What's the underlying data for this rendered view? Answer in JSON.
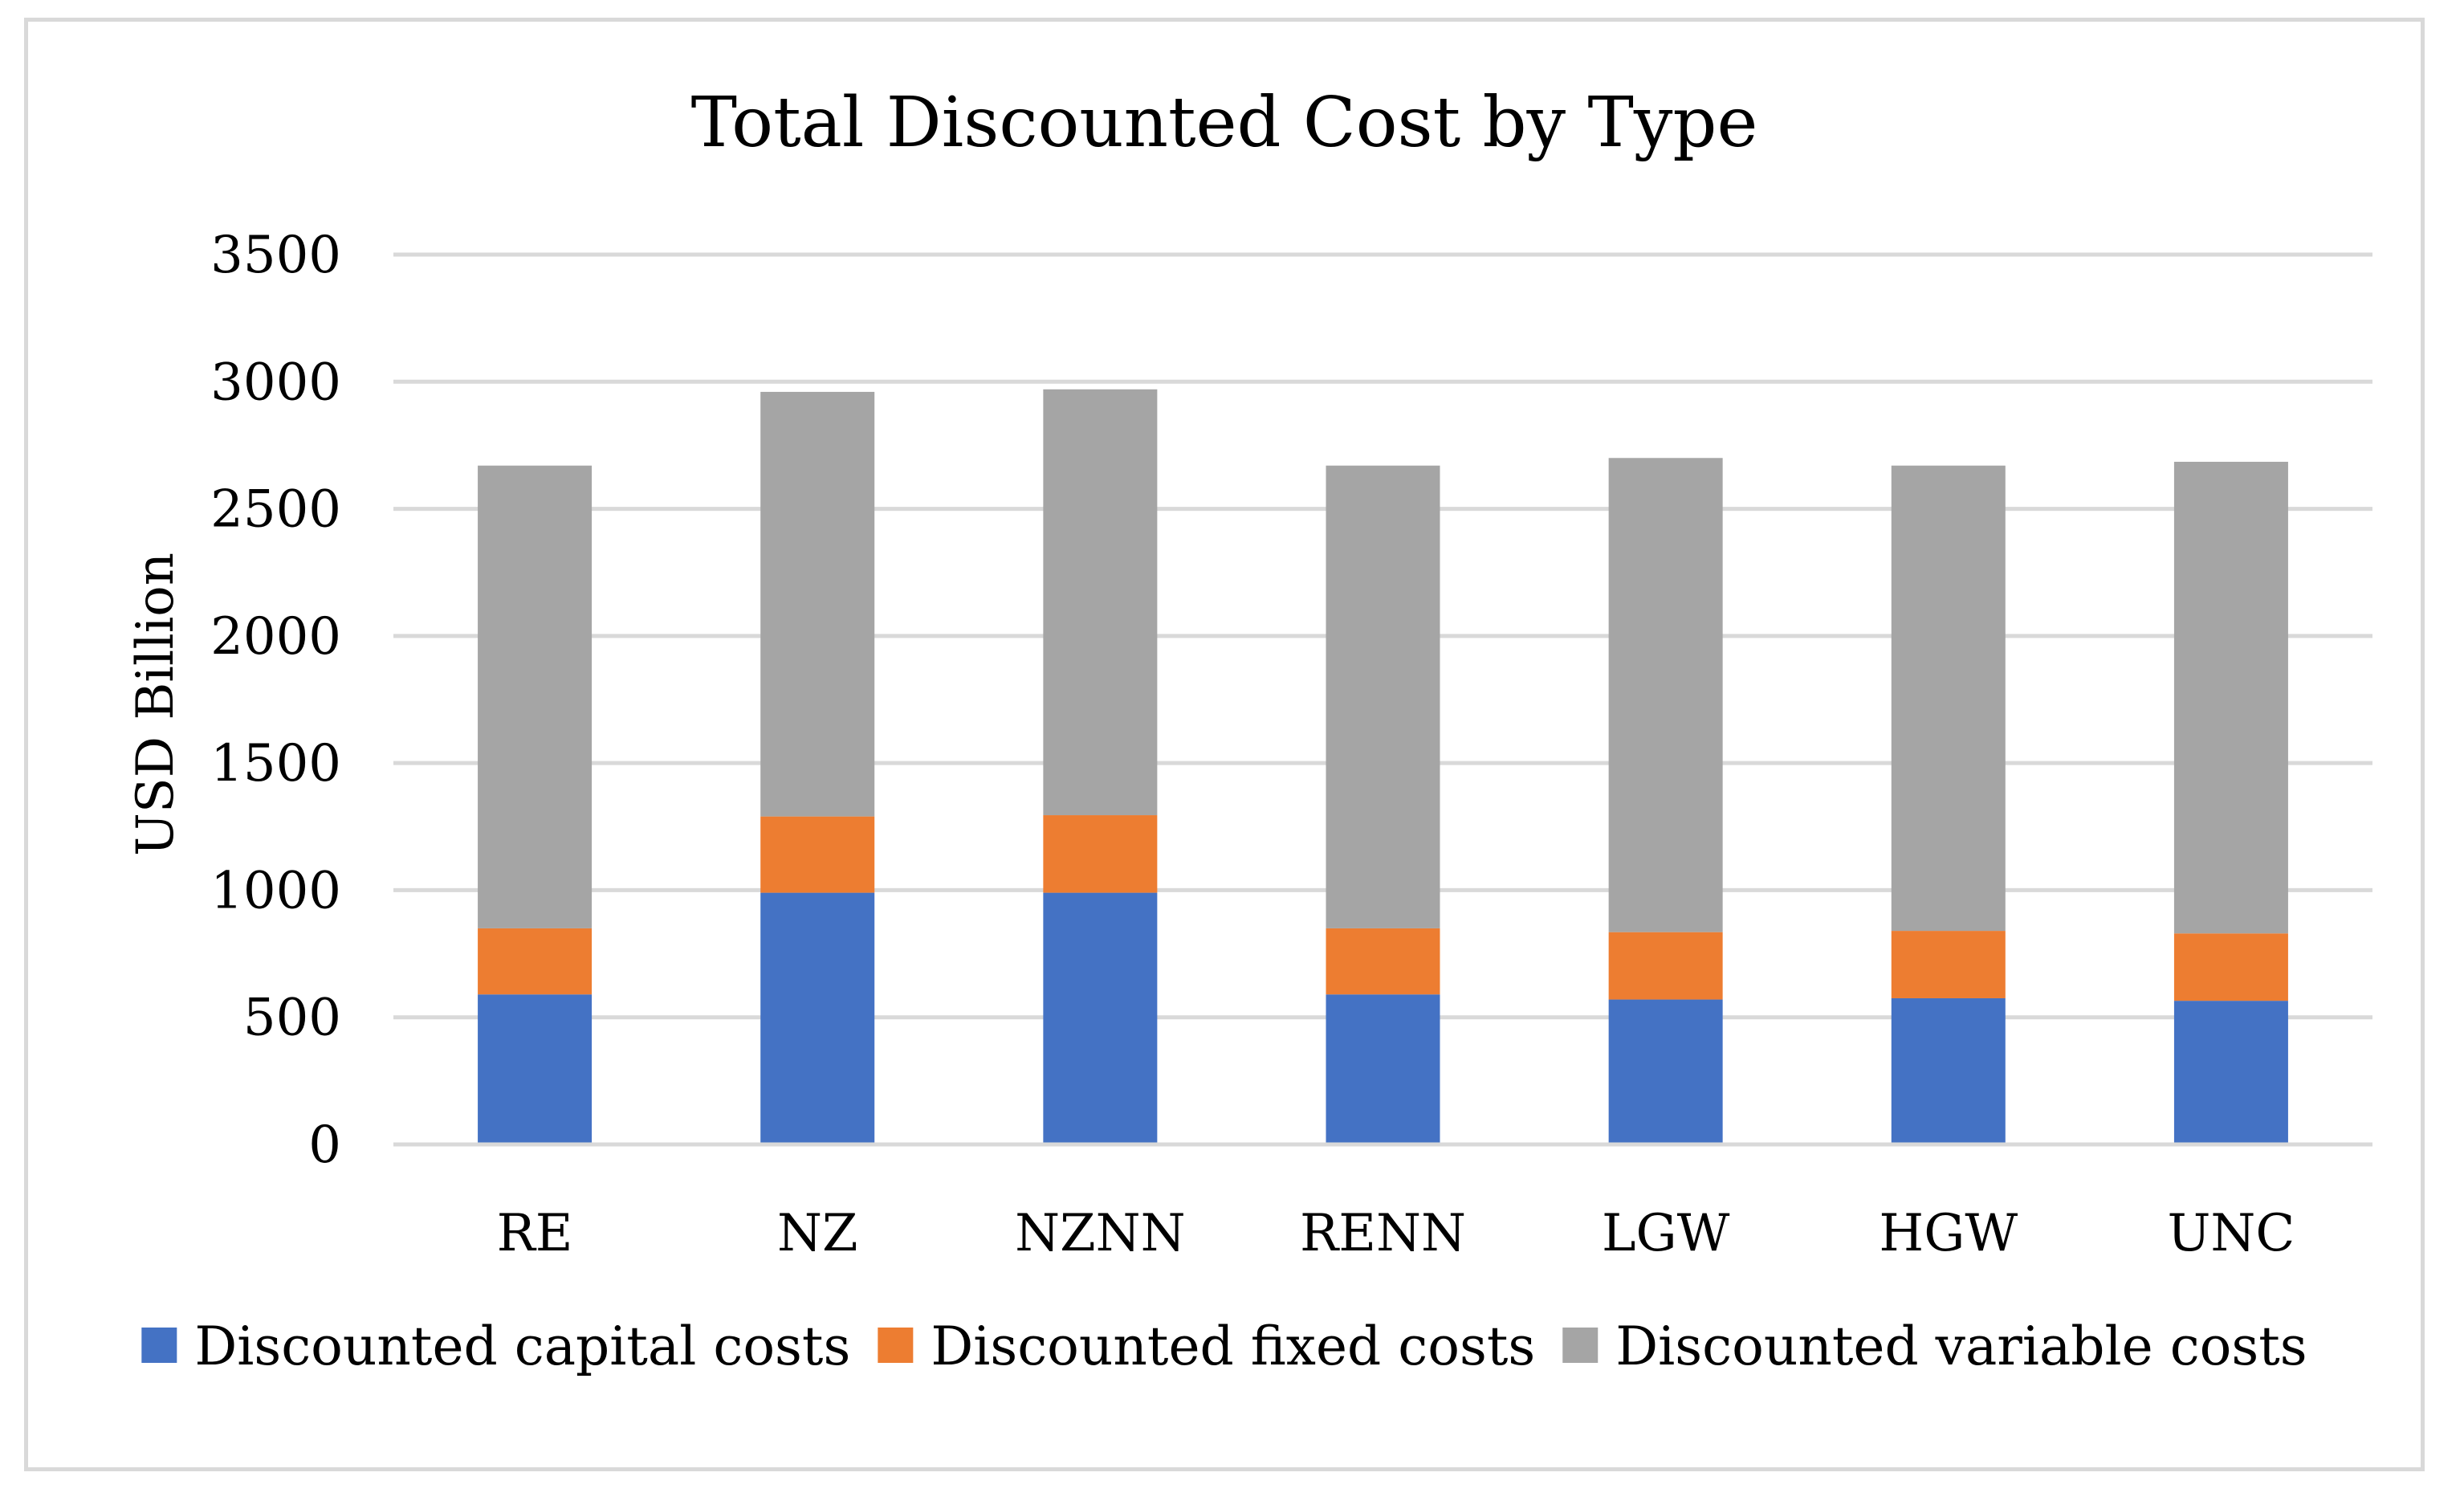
{
  "chart_data": {
    "type": "bar",
    "stacked": true,
    "title": "Total Discounted Cost by Type",
    "xlabel": "",
    "ylabel": "USD Billion",
    "ylim": [
      0,
      3500
    ],
    "yticks": [
      0,
      500,
      1000,
      1500,
      2000,
      2500,
      3000,
      3500
    ],
    "grid": true,
    "legend_position": "bottom",
    "categories": [
      "RE",
      "NZ",
      "NZNN",
      "RENN",
      "LGW",
      "HGW",
      "UNC"
    ],
    "series": [
      {
        "name": "Discounted capital costs",
        "color": "#4472c4",
        "values": [
          590,
          990,
          990,
          590,
          570,
          575,
          565
        ]
      },
      {
        "name": "Discounted fixed costs",
        "color": "#ed7d31",
        "values": [
          260,
          300,
          305,
          260,
          265,
          265,
          265
        ]
      },
      {
        "name": "Discounted variable costs",
        "color": "#a5a5a5",
        "values": [
          1820,
          1670,
          1675,
          1820,
          1865,
          1830,
          1855
        ]
      }
    ],
    "grid_color": "#d9d9d9"
  }
}
